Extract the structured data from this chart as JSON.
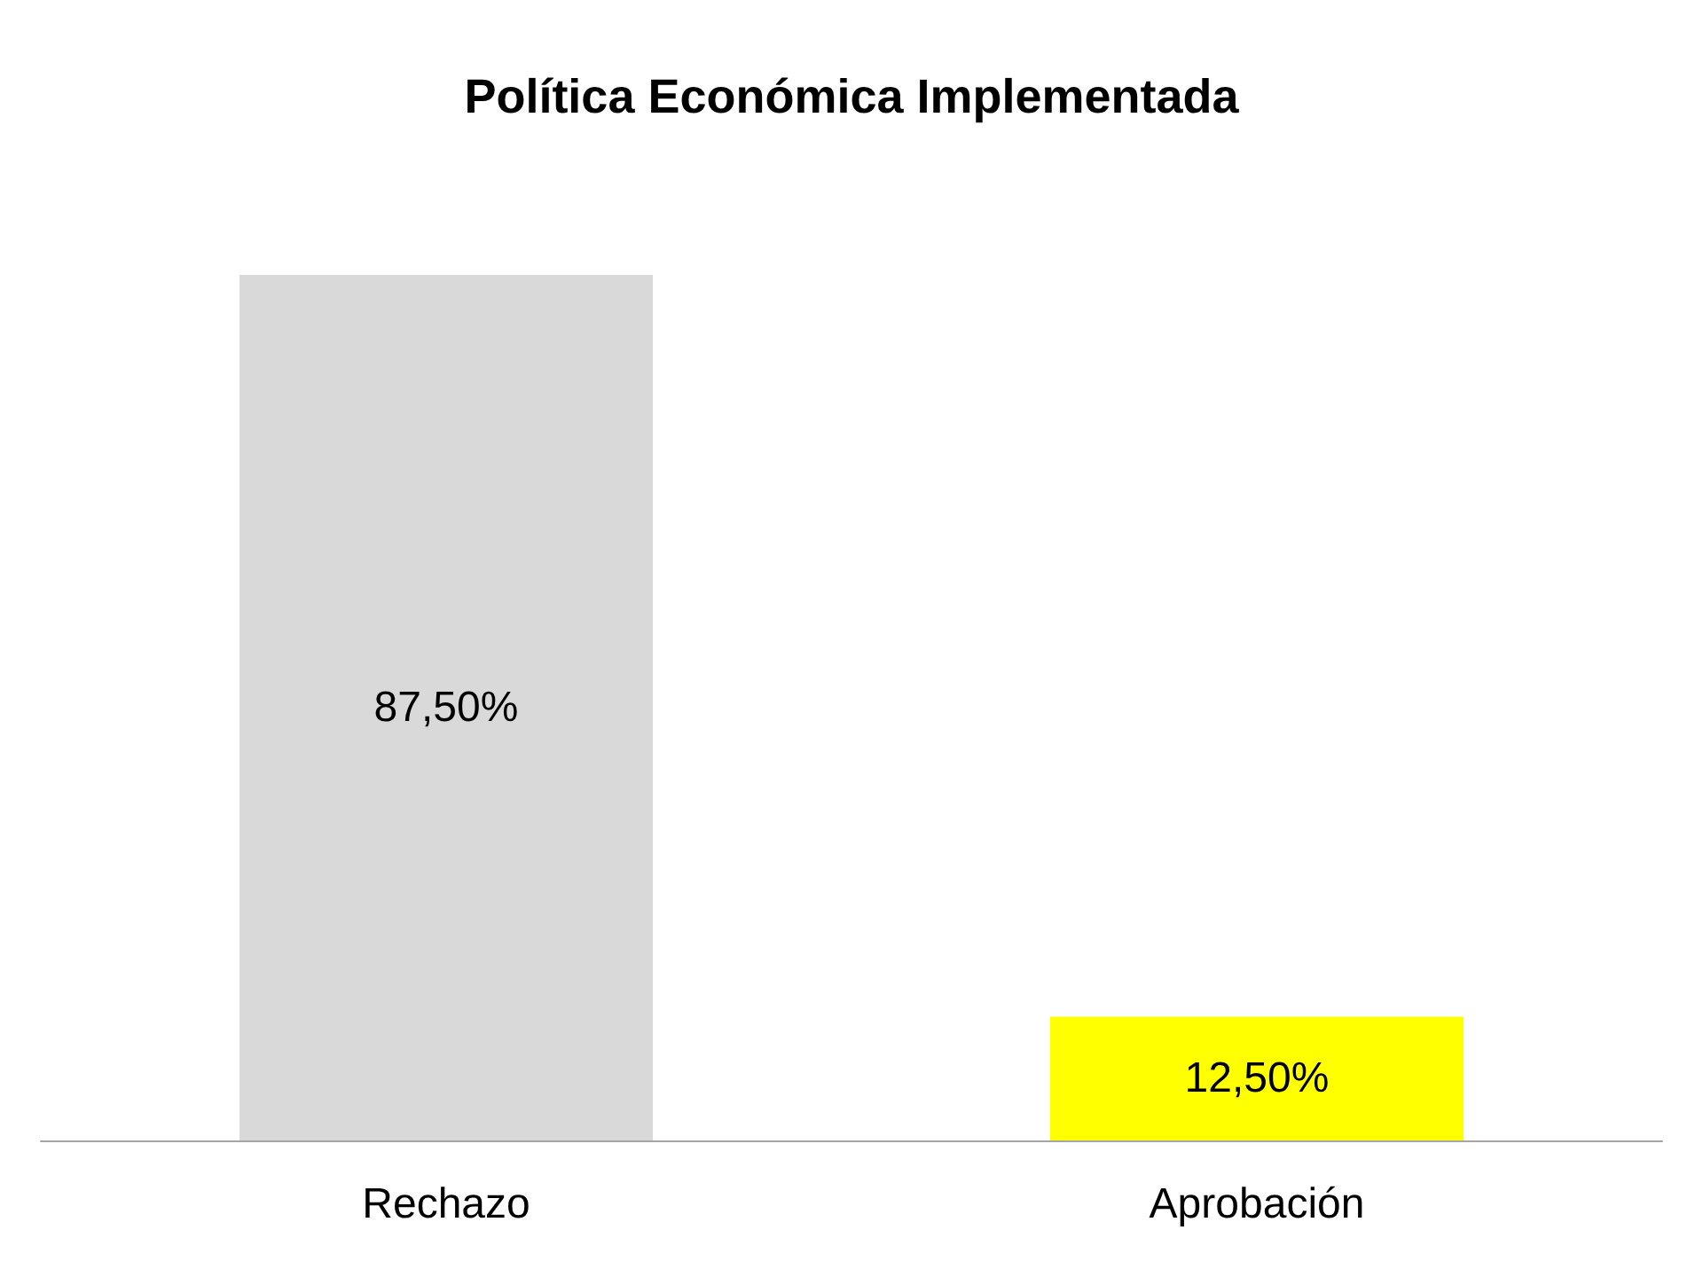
{
  "chart_data": {
    "type": "bar",
    "title": "Política Económica Implementada",
    "categories": [
      "Rechazo",
      "Aprobación"
    ],
    "values": [
      87.5,
      12.5
    ],
    "colors": [
      "#d9d9d9",
      "#ffff00"
    ],
    "value_labels": [
      "87,50%",
      "12,50%"
    ]
  }
}
